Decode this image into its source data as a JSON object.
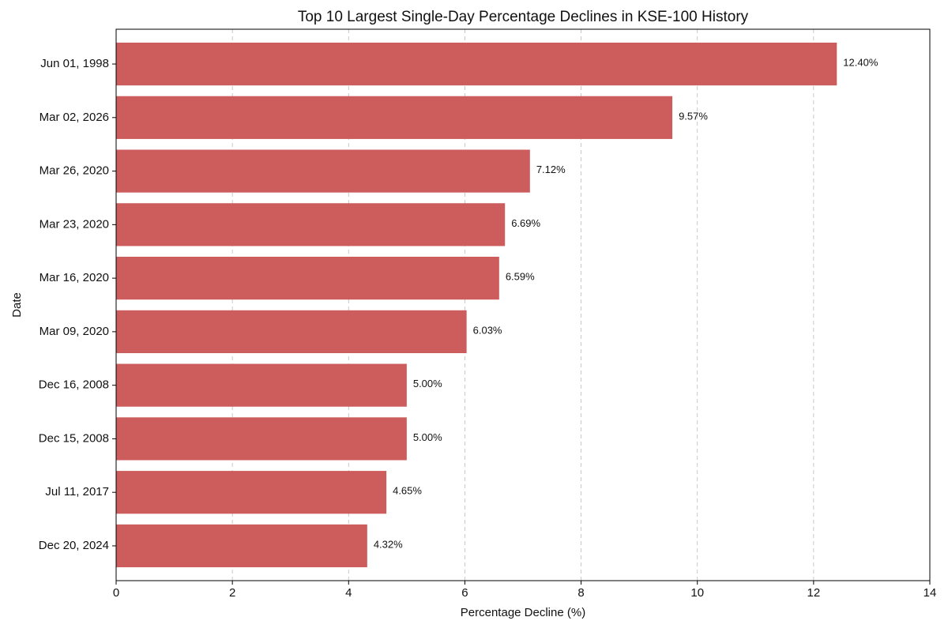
{
  "chart_data": {
    "type": "hbar",
    "title": "Top 10 Largest Single-Day Percentage Declines in KSE-100 History",
    "x_label": "Percentage Decline (%)",
    "y_label": "Date",
    "categories": [
      "Jun 01, 1998",
      "Mar 02, 2026",
      "Mar 26, 2020",
      "Mar 23, 2020",
      "Mar 16, 2020",
      "Mar 09, 2020",
      "Dec 16, 2008",
      "Dec 15, 2008",
      "Jul 11, 2017",
      "Dec 20, 2024"
    ],
    "values": [
      12.4,
      9.57,
      7.12,
      6.69,
      6.59,
      6.03,
      5.0,
      5.0,
      4.65,
      4.32
    ],
    "value_labels": [
      "12.40%",
      "9.57%",
      "7.12%",
      "6.69%",
      "6.59%",
      "6.03%",
      "5.00%",
      "5.00%",
      "4.65%",
      "4.32%"
    ],
    "color": "#cd5c5c",
    "xlim": [
      0,
      14
    ],
    "xticks": [
      0,
      2,
      4,
      6,
      8,
      10,
      12,
      14
    ],
    "grid": true
  }
}
